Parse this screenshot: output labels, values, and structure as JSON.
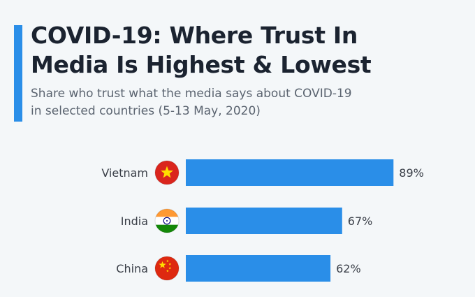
{
  "header": {
    "title": "COVID-19: Where Trust In\nMedia Is Highest & Lowest",
    "subtitle": "Share who trust what the media says about COVID-19\nin selected countries (5-13 May, 2020)"
  },
  "colors": {
    "bar": "#2a8ee8",
    "accent": "#2a8ee8",
    "title": "#1b2330",
    "subtitle": "#5b6470",
    "background": "#f4f7f9"
  },
  "chart_data": {
    "type": "bar",
    "orientation": "horizontal",
    "title": "COVID-19: Where Trust In Media Is Highest & Lowest",
    "subtitle": "Share who trust what the media says about COVID-19 in selected countries (5-13 May, 2020)",
    "categories": [
      "Vietnam",
      "India",
      "China"
    ],
    "values": [
      89,
      67,
      62
    ],
    "value_labels": [
      "89%",
      "67%",
      "62%"
    ],
    "flag_icons": [
      "vietnam-flag-icon",
      "india-flag-icon",
      "china-flag-icon"
    ],
    "xlim": [
      0,
      100
    ],
    "grid": false,
    "legend": "none"
  }
}
